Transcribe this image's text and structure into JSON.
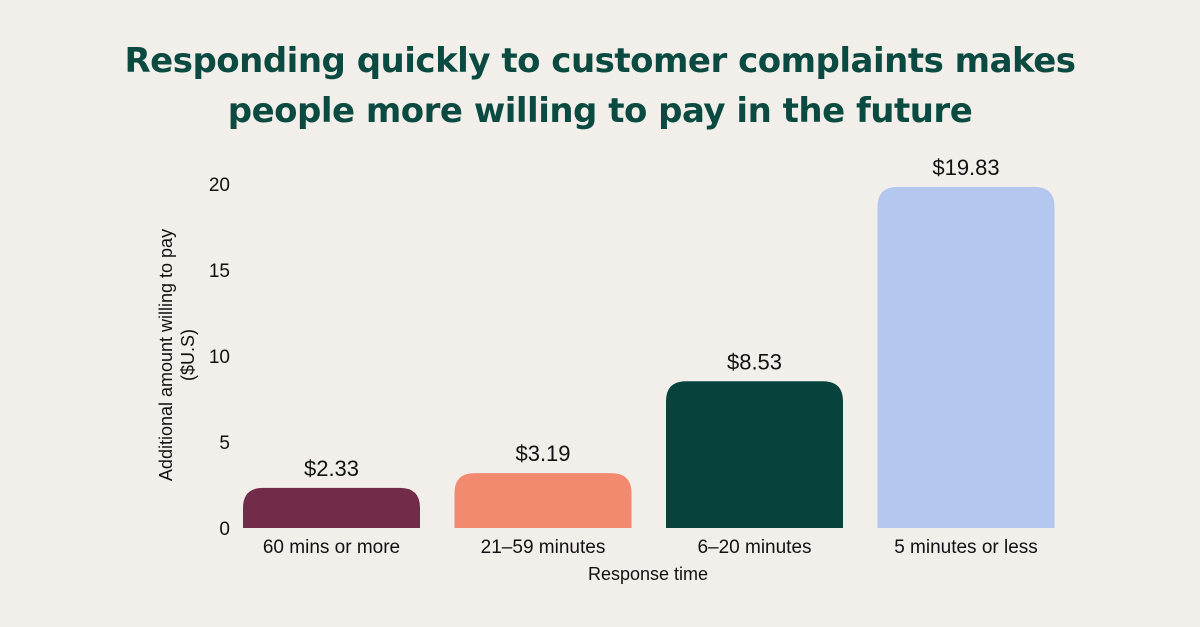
{
  "title_lines": [
    "Responding quickly to customer complaints makes",
    "people more willing to pay in the future"
  ],
  "chart_data": {
    "type": "bar",
    "title": "Responding quickly to customer complaints makes people more willing to pay in the future",
    "xlabel": "Response time",
    "ylabel_lines": [
      "Additional amount willing to pay",
      "($U.S)"
    ],
    "categories": [
      "60 mins or more",
      "21–59 minutes",
      "6–20 minutes",
      "5 minutes or less"
    ],
    "values": [
      2.33,
      3.19,
      8.53,
      19.83
    ],
    "data_labels": [
      "$2.33",
      "$3.19",
      "$8.53",
      "$19.83"
    ],
    "colors": [
      "#722c49",
      "#f28a70",
      "#07433c",
      "#b4c7ee"
    ],
    "ylim": [
      0,
      20
    ],
    "yticks": [
      0,
      5,
      10,
      15,
      20
    ],
    "grid": false,
    "legend": "none"
  }
}
